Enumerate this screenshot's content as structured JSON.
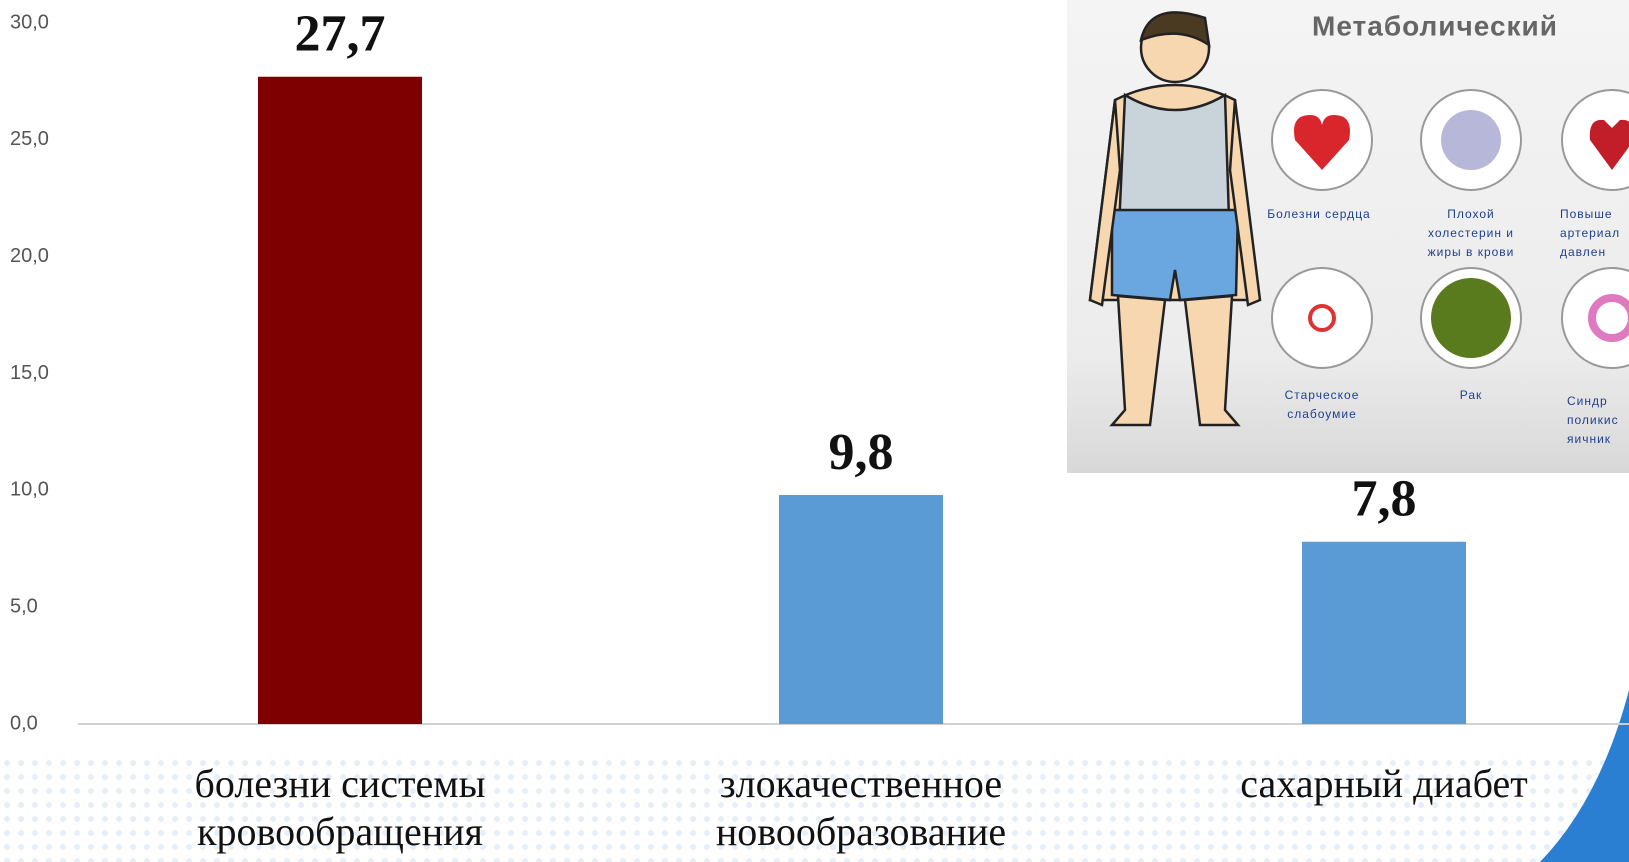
{
  "chart_data": {
    "type": "bar",
    "categories": [
      "болезни системы кровообращения",
      "злокачественное новообразование",
      "сахарный диабет"
    ],
    "values": [
      27.7,
      9.8,
      7.8
    ],
    "value_labels": [
      "27,7",
      "9,8",
      "7,8"
    ],
    "colors": [
      "#7f0000",
      "#5b9bd5",
      "#5b9bd5"
    ],
    "ylim": [
      0,
      30
    ],
    "yticks": [
      {
        "value": 0,
        "label": "0,0"
      },
      {
        "value": 5,
        "label": "5,0"
      },
      {
        "value": 10,
        "label": "10,0"
      },
      {
        "value": 15,
        "label": "15,0"
      },
      {
        "value": 20,
        "label": "20,0"
      },
      {
        "value": 25,
        "label": "25,0"
      },
      {
        "value": 30,
        "label": "30,0"
      }
    ],
    "grid": false
  },
  "inset": {
    "title": "Метаболический",
    "icons": [
      {
        "label": "Болезни сердца"
      },
      {
        "label": "Плохой холестерин и жиры в крови"
      },
      {
        "label": "Повыше артериал давлен"
      },
      {
        "label": "Старческое слабоумие"
      },
      {
        "label": "Рак"
      },
      {
        "label": "Синдр поликис яичник"
      }
    ]
  }
}
